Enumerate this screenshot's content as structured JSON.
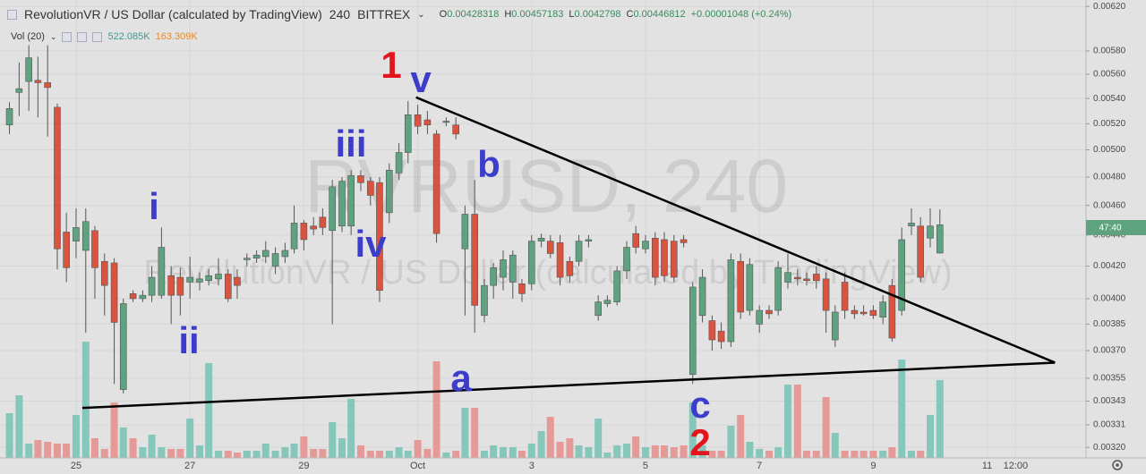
{
  "chart_data": {
    "type": "candlestick",
    "title": "RevolutionVR / US Dollar (calculated by TradingView)",
    "interval": "240",
    "exchange": "BITTREX",
    "ohlc_header": [
      {
        "label": "O",
        "value": 0.00428318
      },
      {
        "label": "H",
        "value": 0.00457183
      },
      {
        "label": "L",
        "value": 0.0042798
      },
      {
        "label": "C",
        "value": 0.00446812
      }
    ],
    "change": "+0.00001048 (+0.24%)",
    "volume_header": {
      "label": "Vol (20)",
      "values": [
        "522.085K",
        "163.309K"
      ]
    },
    "watermark": [
      "RVRUSD, 240",
      "RevolutionVR / US Dollar (calculated by TradingView)"
    ],
    "countdown": "47:40",
    "x": [
      23.83,
      24,
      24.17,
      24.33,
      24.5,
      24.67,
      24.83,
      25,
      25.17,
      25.33,
      25.5,
      25.67,
      25.83,
      26,
      26.17,
      26.33,
      26.5,
      26.67,
      26.83,
      27,
      27.17,
      27.33,
      27.5,
      27.67,
      27.83,
      28,
      28.17,
      28.33,
      28.5,
      28.67,
      28.83,
      29,
      29.17,
      29.33,
      29.5,
      29.67,
      29.83,
      30,
      30.17,
      30.33,
      30.5,
      30.67,
      30.83,
      31,
      31.17,
      31.33,
      31.5,
      31.67,
      31.83,
      32,
      32.17,
      32.33,
      32.5,
      32.67,
      32.83,
      33,
      33.17,
      33.33,
      33.5,
      33.67,
      33.83,
      34,
      34.17,
      34.33,
      34.5,
      34.67,
      34.83,
      35,
      35.17,
      35.33,
      35.5,
      35.67,
      35.83,
      36,
      36.17,
      36.33,
      36.5,
      36.67,
      36.83,
      37,
      37.17,
      37.33,
      37.5,
      37.67,
      37.83,
      38,
      38.17,
      38.33,
      38.5,
      38.67,
      38.83,
      39,
      39.17,
      39.33,
      39.5,
      39.67,
      39.83,
      40,
      40.17
    ],
    "open": [
      0.00519,
      0.00545,
      0.00554,
      0.00555,
      0.00553,
      0.00533,
      0.00442,
      0.00436,
      0.0043,
      0.00443,
      0.00423,
      0.00422,
      0.00349,
      0.00403,
      0.004,
      0.00402,
      0.00402,
      0.00414,
      0.00413,
      0.0041,
      0.0041,
      0.00411,
      0.00412,
      0.00415,
      0.00413,
      0.00424,
      0.00425,
      0.00426,
      0.0042,
      0.00426,
      0.00431,
      0.00448,
      0.00446,
      0.00452,
      0.00443,
      0.00446,
      0.00446,
      0.00481,
      0.00477,
      0.00476,
      0.00455,
      0.00483,
      0.00498,
      0.00527,
      0.00523,
      0.00512,
      0.00521,
      0.00519,
      0.00431,
      0.00454,
      0.0039,
      0.00408,
      0.00413,
      0.0041,
      0.00409,
      0.00409,
      0.00436,
      0.00436,
      0.00435,
      0.00423,
      0.00423,
      0.00436,
      0.0039,
      0.00397,
      0.00398,
      0.00417,
      0.00441,
      0.00431,
      0.00438,
      0.00437,
      0.00436,
      0.00437,
      0.00357,
      0.0039,
      0.00387,
      0.00381,
      0.00375,
      0.00423,
      0.00393,
      0.00385,
      0.00393,
      0.00393,
      0.0041,
      0.00413,
      0.00412,
      0.00415,
      0.00412,
      0.00376,
      0.0041,
      0.00393,
      0.00392,
      0.00393,
      0.00389,
      0.00408,
      0.00393,
      0.00446,
      0.00446,
      0.00438,
      0.00428318
    ],
    "high": [
      0.00537,
      0.0057,
      0.00585,
      0.00575,
      0.00585,
      0.00536,
      0.00455,
      0.00458,
      0.00458,
      0.00446,
      0.00428,
      0.00425,
      0.004,
      0.00405,
      0.00405,
      0.0042,
      0.00445,
      0.0042,
      0.00419,
      0.00426,
      0.00416,
      0.00418,
      0.00425,
      0.00418,
      0.00418,
      0.00428,
      0.0043,
      0.00436,
      0.00432,
      0.00435,
      0.0046,
      0.0045,
      0.00452,
      0.00458,
      0.00478,
      0.0048,
      0.00485,
      0.00485,
      0.0048,
      0.0048,
      0.0049,
      0.00505,
      0.00538,
      0.00535,
      0.0053,
      0.00515,
      0.00525,
      0.00525,
      0.0046,
      0.00478,
      0.00412,
      0.00422,
      0.0043,
      0.0043,
      0.00412,
      0.0044,
      0.00441,
      0.0044,
      0.0044,
      0.00426,
      0.0044,
      0.0044,
      0.00402,
      0.00402,
      0.0042,
      0.00436,
      0.00446,
      0.0044,
      0.00442,
      0.00442,
      0.0044,
      0.0044,
      0.0041,
      0.00418,
      0.0039,
      0.00386,
      0.00428,
      0.00428,
      0.00425,
      0.00396,
      0.00396,
      0.00423,
      0.00428,
      0.00418,
      0.00416,
      0.0042,
      0.00416,
      0.00396,
      0.00416,
      0.00396,
      0.00396,
      0.00396,
      0.00402,
      0.00412,
      0.00445,
      0.00458,
      0.00452,
      0.00458,
      0.00457183
    ],
    "low": [
      0.00512,
      0.00526,
      0.0053,
      0.00525,
      0.0051,
      0.00418,
      0.0041,
      0.00425,
      0.0038,
      0.004,
      0.0039,
      0.00352,
      0.00347,
      0.00398,
      0.00398,
      0.00398,
      0.004,
      0.00385,
      0.0039,
      0.004,
      0.00405,
      0.00408,
      0.00408,
      0.00398,
      0.004,
      0.0042,
      0.00422,
      0.00422,
      0.00415,
      0.00422,
      0.00428,
      0.0043,
      0.0044,
      0.0044,
      0.00385,
      0.00442,
      0.0044,
      0.0047,
      0.0046,
      0.00398,
      0.00448,
      0.00478,
      0.0049,
      0.00512,
      0.00512,
      0.00435,
      0.00518,
      0.00508,
      0.0039,
      0.0038,
      0.00386,
      0.004,
      0.00405,
      0.004,
      0.00398,
      0.00405,
      0.00432,
      0.00425,
      0.00408,
      0.0041,
      0.0042,
      0.00432,
      0.00387,
      0.00395,
      0.00396,
      0.00412,
      0.00428,
      0.00428,
      0.00408,
      0.0041,
      0.0041,
      0.00432,
      0.00352,
      0.00386,
      0.0037,
      0.00371,
      0.00372,
      0.00388,
      0.0039,
      0.0038,
      0.00388,
      0.0039,
      0.00406,
      0.00408,
      0.00408,
      0.00406,
      0.0038,
      0.00372,
      0.00388,
      0.00388,
      0.0039,
      0.00388,
      0.00385,
      0.00375,
      0.0039,
      0.0044,
      0.0041,
      0.00432,
      0.0042798
    ],
    "close": [
      0.00532,
      0.00548,
      0.00574,
      0.00553,
      0.00549,
      0.00431,
      0.00419,
      0.00445,
      0.00449,
      0.00419,
      0.00408,
      0.00386,
      0.00397,
      0.004,
      0.00402,
      0.00413,
      0.00432,
      0.00402,
      0.00402,
      0.00413,
      0.00412,
      0.00414,
      0.00415,
      0.004,
      0.00408,
      0.00425,
      0.00427,
      0.0043,
      0.00428,
      0.0043,
      0.00448,
      0.00437,
      0.00444,
      0.00445,
      0.00473,
      0.00477,
      0.00481,
      0.00476,
      0.00467,
      0.00405,
      0.00485,
      0.00498,
      0.00527,
      0.00518,
      0.00519,
      0.00441,
      0.00522,
      0.00512,
      0.00454,
      0.00396,
      0.00408,
      0.00419,
      0.00424,
      0.00427,
      0.00403,
      0.00436,
      0.00438,
      0.00428,
      0.00413,
      0.00414,
      0.00436,
      0.00437,
      0.00398,
      0.00399,
      0.00417,
      0.00432,
      0.00432,
      0.00436,
      0.00413,
      0.00414,
      0.00413,
      0.00435,
      0.00407,
      0.00413,
      0.00376,
      0.00375,
      0.00424,
      0.00392,
      0.00421,
      0.00393,
      0.00391,
      0.00419,
      0.00416,
      0.00412,
      0.00411,
      0.00411,
      0.00393,
      0.00392,
      0.00393,
      0.00391,
      0.00391,
      0.0039,
      0.00398,
      0.00377,
      0.00437,
      0.00448,
      0.00413,
      0.00446,
      0.00446812
    ],
    "volume": [
      300,
      420,
      96,
      120,
      108,
      96,
      96,
      288,
      780,
      132,
      60,
      372,
      204,
      132,
      72,
      156,
      72,
      60,
      60,
      264,
      84,
      636,
      48,
      48,
      36,
      48,
      48,
      96,
      48,
      72,
      96,
      144,
      60,
      60,
      240,
      132,
      396,
      84,
      48,
      48,
      48,
      72,
      48,
      120,
      60,
      648,
      36,
      48,
      336,
      336,
      48,
      84,
      72,
      72,
      48,
      96,
      180,
      276,
      108,
      132,
      84,
      72,
      264,
      36,
      84,
      96,
      144,
      72,
      84,
      84,
      72,
      84,
      372,
      84,
      48,
      48,
      216,
      288,
      108,
      60,
      48,
      72,
      492,
      492,
      48,
      48,
      408,
      168,
      48,
      48,
      48,
      48,
      48,
      72,
      660,
      48,
      48,
      288,
      522.085
    ],
    "up_color": "#5fa27f",
    "down_color": "#d9533f",
    "volume_up_color": "#86c7bb",
    "volume_down_color": "#e59a98",
    "log_y": true,
    "grid": true,
    "ylim": [
      0.00315,
      0.00626
    ],
    "yticks": [
      {
        "value": 0.0062,
        "label": "0.00620"
      },
      {
        "value": 0.0058,
        "label": "0.00580"
      },
      {
        "value": 0.0056,
        "label": "0.00560"
      },
      {
        "value": 0.0054,
        "label": "0.00540"
      },
      {
        "value": 0.0052,
        "label": "0.00520"
      },
      {
        "value": 0.005,
        "label": "0.00500"
      },
      {
        "value": 0.0048,
        "label": "0.00480"
      },
      {
        "value": 0.0046,
        "label": "0.00460"
      },
      {
        "value": 0.0044,
        "label": "0.00440"
      },
      {
        "value": 0.0042,
        "label": "0.00420"
      },
      {
        "value": 0.004,
        "label": "0.00400"
      },
      {
        "value": 0.00385,
        "label": "0.00385"
      },
      {
        "value": 0.0037,
        "label": "0.00370"
      },
      {
        "value": 0.00355,
        "label": "0.00355"
      },
      {
        "value": 0.00343,
        "label": "0.00343"
      },
      {
        "value": 0.00331,
        "label": "0.00331"
      },
      {
        "value": 0.0032,
        "label": "0.00320"
      }
    ],
    "xlim": [
      23.664,
      42.736
    ],
    "xticks": [
      25,
      27,
      29,
      {
        "value": 31,
        "label": "Oct"
      },
      {
        "value": 33,
        "label": "3"
      },
      {
        "value": 35,
        "label": "5"
      },
      {
        "value": 37,
        "label": "7"
      },
      {
        "value": 39,
        "label": "9"
      },
      {
        "value": 41,
        "label": "11"
      },
      {
        "value": 41.5,
        "label": "12:00"
      }
    ],
    "y2lim": [
      0,
      1200
    ],
    "trendlines": [
      {
        "x": [
          30.97,
          42.19
        ],
        "y": [
          0.00541,
          0.003634
        ]
      },
      {
        "x": [
          25.11,
          42.19
        ],
        "y": [
          0.003395,
          0.003634
        ]
      }
    ],
    "annotations": [
      {
        "text": "1",
        "color": "#e3151c"
      },
      {
        "text": "v",
        "color": "#3c3ecb"
      },
      {
        "text": "iii",
        "color": "#3c3ecb"
      },
      {
        "text": "iv",
        "color": "#3c3ecb"
      },
      {
        "text": "i",
        "color": "#3c3ecb"
      },
      {
        "text": "ii",
        "color": "#3c3ecb"
      },
      {
        "text": "b",
        "color": "#3c3ecb"
      },
      {
        "text": "a",
        "color": "#3c3ecb"
      },
      {
        "text": "c",
        "color": "#3c3ecb"
      },
      {
        "text": "2",
        "color": "#e3151c"
      }
    ]
  }
}
